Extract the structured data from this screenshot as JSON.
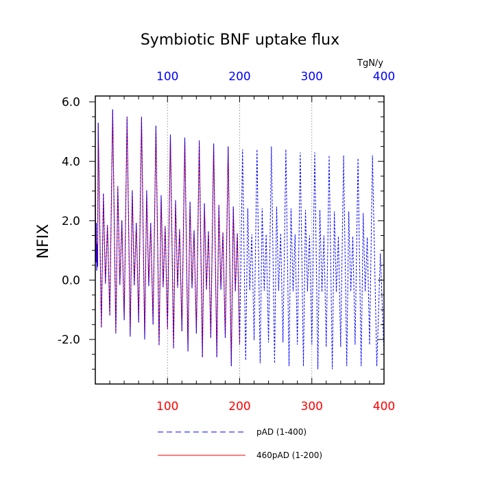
{
  "chart_data": {
    "type": "line",
    "title": "Symbiotic BNF uptake flux",
    "ylabel": "NFIX",
    "top_axis_unit": "TgN/y",
    "xlim": [
      0,
      400
    ],
    "ylim": [
      -3.5,
      6.2
    ],
    "x_ticks": [
      100,
      200,
      300,
      400
    ],
    "x_tick_labels": [
      "100",
      "200",
      "300",
      "400"
    ],
    "y_ticks": [
      -2,
      0,
      2,
      4,
      6
    ],
    "y_tick_labels": [
      "-2.0",
      "0.0",
      "2.0",
      "4.0",
      "6.0"
    ],
    "grid": "vertical dotted at x ticks",
    "legend_position": "bottom",
    "colors": {
      "series1": "#0000ff",
      "series2": "#ff0000",
      "bottom_tick_labels": "#ff0000",
      "top_tick_labels": "#0000ff"
    },
    "peaks_x": [
      0,
      4,
      24,
      44,
      64,
      84,
      104,
      124,
      144,
      164,
      184,
      204,
      224,
      244,
      264,
      284,
      304,
      324,
      344,
      364,
      384
    ],
    "peaks_y": [
      3.5,
      5.3,
      5.75,
      5.5,
      5.5,
      5.2,
      4.9,
      4.8,
      4.7,
      4.6,
      4.5,
      4.4,
      4.4,
      4.5,
      4.4,
      4.3,
      4.3,
      4.2,
      4.2,
      4.1,
      4.2
    ],
    "troughs_y": [
      0.6,
      -1.6,
      -1.8,
      -1.9,
      -2.0,
      -2.2,
      -2.3,
      -2.4,
      -2.6,
      -2.6,
      -2.9,
      -2.7,
      -2.8,
      -2.8,
      -2.9,
      -2.9,
      -3.0,
      -3.0,
      -2.9,
      -2.9,
      -2.9
    ],
    "series": [
      {
        "name": "pAD (1-400)",
        "x_range": [
          1,
          400
        ],
        "style": "dashed"
      },
      {
        "name": "460pAD (1-200)",
        "x_range": [
          1,
          200
        ],
        "style": "solid"
      }
    ]
  }
}
